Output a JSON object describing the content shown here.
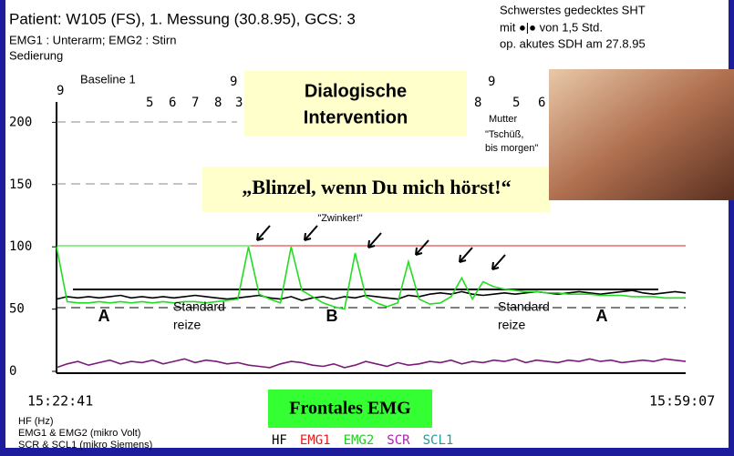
{
  "header": {
    "title": "Patient: W105 (FS), 1. Messung (30.8.95), GCS: 3",
    "line2": "EMG1 : Unterarm;  EMG2 : Stirn",
    "line3": "Sedierung",
    "right1": "Schwerstes gedecktes SHT",
    "right2": "mit  ●|●  von 1,5 Std.",
    "right3": "op. akutes SDH am 27.8.95"
  },
  "chart_data": {
    "type": "line",
    "ylim": [
      0,
      220
    ],
    "yticks": [
      0,
      50,
      100,
      150,
      200
    ],
    "x_start_label": "15:22:41",
    "x_end_label": "15:59:07",
    "top_markers": [
      "9",
      "Baseline 1",
      "5",
      "6",
      "7",
      "8",
      "3",
      "9",
      "8",
      "9",
      "5",
      "6"
    ],
    "series": [
      {
        "name": "HF",
        "color": "#000000",
        "values": [
          58,
          60,
          59,
          60,
          59,
          60,
          61,
          59,
          60,
          59,
          60,
          59,
          60,
          61,
          60,
          59,
          58,
          59,
          60,
          61,
          59,
          58,
          60,
          57,
          59,
          60,
          58,
          60,
          59,
          61,
          60,
          59,
          58,
          61,
          60,
          62,
          63,
          62,
          64,
          62,
          61,
          62,
          63,
          62,
          63,
          64,
          63,
          62,
          63,
          64,
          63,
          62,
          63,
          64,
          65,
          63,
          62,
          63,
          64,
          63
        ]
      },
      {
        "name": "EMG2",
        "color": "#22dd22",
        "values": [
          100,
          56,
          55,
          55,
          56,
          55,
          56,
          55,
          56,
          55,
          56,
          55,
          56,
          56,
          55,
          56,
          57,
          58,
          100,
          62,
          58,
          55,
          100,
          65,
          60,
          55,
          52,
          50,
          95,
          60,
          55,
          52,
          55,
          88,
          58,
          54,
          55,
          60,
          75,
          58,
          72,
          68,
          66,
          65,
          64,
          64,
          63,
          63,
          62,
          62,
          62,
          61,
          61,
          61,
          60,
          60,
          60,
          59,
          59,
          59
        ]
      },
      {
        "name": "SCR",
        "color": "#7a1a7a",
        "values": [
          3,
          6,
          8,
          5,
          7,
          9,
          6,
          8,
          7,
          9,
          6,
          8,
          10,
          7,
          9,
          8,
          6,
          7,
          5,
          4,
          3,
          6,
          8,
          7,
          5,
          4,
          6,
          3,
          5,
          8,
          6,
          4,
          7,
          5,
          6,
          8,
          7,
          9,
          6,
          8,
          7,
          9,
          8,
          10,
          7,
          9,
          8,
          7,
          9,
          8,
          10,
          8,
          9,
          7,
          8,
          9,
          8,
          10,
          9,
          8
        ]
      }
    ],
    "legend": [
      {
        "name": "HF",
        "color": "#000000"
      },
      {
        "name": "EMG1",
        "color": "#e02020"
      },
      {
        "name": "EMG2",
        "color": "#22cc22"
      },
      {
        "name": "SCR",
        "color": "#aa22aa"
      },
      {
        "name": "SCL1",
        "color": "#229999"
      }
    ],
    "units": [
      "HF (Hz)",
      "EMG1 & EMG2 (mikro Volt)",
      "SCR & SCL1 (mikro Siemens)"
    ],
    "annotations": {
      "dialog": [
        "Dialogische",
        "Intervention"
      ],
      "blink": "„Blinzel, wenn Du mich hörst!“",
      "wink": "\"Zwinker!\"",
      "mother": [
        "Mutter",
        "\"Tschüß,",
        "bis morgen\""
      ],
      "phase_a1": "A",
      "phase_b": "B",
      "phase_a2": "A",
      "standard1": [
        "Standard",
        "reize"
      ],
      "standard2": [
        "Standard",
        "reize"
      ],
      "frontal": "Frontales EMG"
    }
  }
}
